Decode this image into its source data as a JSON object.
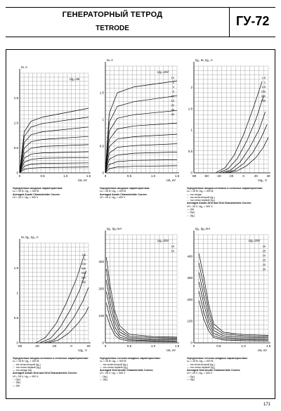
{
  "header": {
    "title_ru": "ГЕНЕРАТОРНЫЙ ТЕТРОД",
    "title_en": "TETRODE",
    "model": "ГУ-72"
  },
  "page_number": "171",
  "chart_data": [
    {
      "id": "c1",
      "type": "line",
      "ylabel": "Ia, A",
      "xlabel": "Ua, кV",
      "xticks": [
        "0",
        "0.5",
        "1.0",
        "1.5"
      ],
      "yticks": [
        "0",
        "0.5",
        "1.0",
        "1.5"
      ],
      "xlim": [
        0,
        1.5
      ],
      "ylim": [
        0,
        1.7
      ],
      "annotation": "Ug₁=1Б",
      "grid": true,
      "series": [
        {
          "x": [
            0,
            0.1,
            0.25,
            0.5,
            1.5
          ],
          "y": [
            0,
            0.7,
            0.88,
            0.95,
            1.1
          ]
        },
        {
          "x": [
            0,
            0.1,
            0.25,
            0.5,
            1.5
          ],
          "y": [
            0,
            0.62,
            0.78,
            0.84,
            0.95
          ]
        },
        {
          "x": [
            0,
            0.1,
            0.25,
            0.5,
            1.5
          ],
          "y": [
            0,
            0.52,
            0.65,
            0.7,
            0.78
          ]
        },
        {
          "x": [
            0,
            0.1,
            0.25,
            0.5,
            1.5
          ],
          "y": [
            0,
            0.42,
            0.53,
            0.57,
            0.62
          ]
        },
        {
          "x": [
            0,
            0.1,
            0.25,
            0.5,
            1.5
          ],
          "y": [
            0,
            0.33,
            0.42,
            0.45,
            0.48
          ]
        },
        {
          "x": [
            0,
            0.1,
            0.25,
            0.5,
            1.5
          ],
          "y": [
            0,
            0.25,
            0.32,
            0.34,
            0.36
          ]
        },
        {
          "x": [
            0,
            0.1,
            0.25,
            0.5,
            1.5
          ],
          "y": [
            0,
            0.18,
            0.23,
            0.25,
            0.26
          ]
        },
        {
          "x": [
            0,
            0.1,
            0.25,
            0.5,
            1.5
          ],
          "y": [
            0,
            0.11,
            0.15,
            0.16,
            0.17
          ]
        },
        {
          "x": [
            0,
            0.1,
            0.25,
            0.5,
            1.5
          ],
          "y": [
            0,
            0.06,
            0.08,
            0.09,
            0.1
          ]
        }
      ],
      "caption": {
        "ru_title": "Усредненные анодные характеристики:",
        "ru_cond": "Uₙ = 26 В; Ug₂ = 300 В",
        "en_title": "Averaged Anode Characteristic Curves:",
        "en_cond": "Uf = 26 V; Ug₂ = 300 V"
      }
    },
    {
      "id": "c2",
      "type": "line",
      "ylabel": "Ia, A",
      "xlabel": "Ua, кV",
      "xticks": [
        "0",
        "0.5",
        "1.0",
        "1.5"
      ],
      "yticks": [
        "0",
        "0.5",
        "1",
        "1.5"
      ],
      "xlim": [
        0,
        1.5
      ],
      "ylim": [
        0,
        1.8
      ],
      "annotation": "Ug₁=15V",
      "curve_labels": [
        "10",
        "5",
        "0",
        "-5",
        "-10",
        "-15",
        "-20",
        "-25",
        "-30"
      ],
      "grid": true,
      "series": [
        {
          "x": [
            0,
            0.08,
            0.25,
            0.6,
            1.5
          ],
          "y": [
            0,
            1.0,
            1.35,
            1.45,
            1.55
          ]
        },
        {
          "x": [
            0,
            0.08,
            0.25,
            0.6,
            1.5
          ],
          "y": [
            0,
            0.85,
            1.12,
            1.2,
            1.3
          ]
        },
        {
          "x": [
            0,
            0.08,
            0.25,
            0.6,
            1.5
          ],
          "y": [
            0,
            0.7,
            0.92,
            0.98,
            1.05
          ]
        },
        {
          "x": [
            0,
            0.08,
            0.25,
            0.6,
            1.5
          ],
          "y": [
            0,
            0.56,
            0.74,
            0.79,
            0.84
          ]
        },
        {
          "x": [
            0,
            0.08,
            0.25,
            0.6,
            1.5
          ],
          "y": [
            0,
            0.44,
            0.57,
            0.61,
            0.65
          ]
        },
        {
          "x": [
            0,
            0.08,
            0.25,
            0.6,
            1.5
          ],
          "y": [
            0,
            0.33,
            0.43,
            0.46,
            0.49
          ]
        },
        {
          "x": [
            0,
            0.08,
            0.25,
            0.6,
            1.5
          ],
          "y": [
            0,
            0.23,
            0.3,
            0.33,
            0.35
          ]
        },
        {
          "x": [
            0,
            0.08,
            0.25,
            0.6,
            1.5
          ],
          "y": [
            0,
            0.14,
            0.19,
            0.21,
            0.22
          ]
        },
        {
          "x": [
            0,
            0.08,
            0.25,
            0.6,
            1.5
          ],
          "y": [
            0,
            0.07,
            0.1,
            0.11,
            0.12
          ]
        }
      ],
      "caption": {
        "ru_title": "Усредненные анодные характеристики:",
        "ru_cond": "Uₙ = 26 В; Ug₂ = 400 В",
        "en_title": "Averaged Anode Characteristic Curves:",
        "en_cond": "Uf = 26 V; Ug₂ = 400 V"
      }
    },
    {
      "id": "c3",
      "type": "line",
      "ylabel": "Ig₁, Ia, Ig₂, A",
      "xlabel": "Ug₁, V",
      "xticks": [
        "-80",
        "-60",
        "-40",
        "-20",
        "0",
        "20",
        "40"
      ],
      "yticks": [
        "0",
        "0.5",
        "1",
        "1.5",
        "2"
      ],
      "xlim": [
        -80,
        40
      ],
      "ylim": [
        0,
        2.1
      ],
      "curve_labels": [
        "1.5",
        "1",
        "0.5",
        "250",
        "350",
        "400"
      ],
      "grid": true,
      "series": [
        {
          "x": [
            -45,
            -30,
            -15,
            0,
            15,
            30
          ],
          "y": [
            0,
            0.1,
            0.35,
            0.75,
            1.25,
            1.8
          ]
        },
        {
          "x": [
            -40,
            -25,
            -10,
            5,
            20,
            32
          ],
          "y": [
            0,
            0.08,
            0.28,
            0.62,
            1.05,
            1.5
          ]
        },
        {
          "x": [
            -35,
            -20,
            -5,
            10,
            25,
            35
          ],
          "y": [
            0,
            0.06,
            0.22,
            0.5,
            0.85,
            1.2
          ]
        },
        {
          "x": [
            -30,
            -15,
            0,
            15,
            28,
            38
          ],
          "y": [
            0,
            0.05,
            0.18,
            0.4,
            0.68,
            0.95
          ]
        },
        {
          "x": [
            -25,
            -10,
            5,
            20,
            32,
            40
          ],
          "y": [
            0,
            0.04,
            0.14,
            0.3,
            0.5,
            0.7
          ]
        }
      ],
      "caption": {
        "ru_title": "Усредненные анодно-сеточные и сеточные характеристики:",
        "ru_cond": "Uₙ = 26 В; Ug₂ = 300 В;",
        "ru_legend": [
          "ток анода",
          "ток сетки второй (Ig₂)",
          "ток сетки первой (Ig₁)"
        ],
        "en_title": "Averaged Anode-Grid and Grid Characteristic Curves:",
        "en_cond": "Uf = 26 V; Ug₂ = 300 V;",
        "en_legend": [
          "(Ia)",
          "(Ig₂)",
          "(Ig₁)"
        ]
      }
    },
    {
      "id": "c4",
      "type": "line",
      "ylabel": "Ia, Ig₁, Ig₂, A",
      "xlabel": "Ug₁, V",
      "xticks": [
        "-60",
        "-40",
        "-20",
        "0",
        "20"
      ],
      "yticks": [
        "0",
        "0.5",
        "1",
        "1.5"
      ],
      "xlim": [
        -60,
        25
      ],
      "ylim": [
        0,
        1.8
      ],
      "curve_labels": [
        "1.5",
        "1",
        "0.5",
        "400",
        "300",
        "200",
        "100"
      ],
      "grid": true,
      "series": [
        {
          "x": [
            -40,
            -28,
            -15,
            -3,
            10,
            20
          ],
          "y": [
            0,
            0.1,
            0.35,
            0.7,
            1.15,
            1.6
          ]
        },
        {
          "x": [
            -35,
            -22,
            -10,
            2,
            14,
            22
          ],
          "y": [
            0,
            0.08,
            0.28,
            0.58,
            0.95,
            1.3
          ]
        },
        {
          "x": [
            -30,
            -17,
            -5,
            7,
            18,
            25
          ],
          "y": [
            0,
            0.06,
            0.22,
            0.46,
            0.75,
            1.0
          ]
        },
        {
          "x": [
            -25,
            -12,
            0,
            12,
            22,
            25
          ],
          "y": [
            0,
            0.05,
            0.17,
            0.35,
            0.55,
            0.65
          ]
        }
      ],
      "caption": {
        "ru_title": "Усредненные анодно-сеточные и сеточные характеристики:",
        "ru_cond": "Uₙ = 26 В; Ug₂ = 400 В;",
        "ru_legend": [
          "ток сетки второй (Ig₂)",
          "ток сетки первой (Ig₁)",
          "ток анода (Ia)"
        ],
        "en_title": "Averaged Anode-Grid and Grid Characteristic Curves:",
        "en_cond": "Uf = 26 V; Ug₂ = 400 V;",
        "en_legend": [
          "(Ig₂)",
          "(Ig₁)",
          "(Ia)"
        ]
      }
    },
    {
      "id": "c5",
      "type": "line",
      "ylabel": "Ig₁, Ig₂,mA",
      "xlabel": "Ua, кV",
      "xticks": [
        "0",
        "0.5",
        "1.0",
        "1.5"
      ],
      "yticks": [
        "0",
        "100",
        "200",
        "300"
      ],
      "xlim": [
        0,
        1.5
      ],
      "ylim": [
        0,
        380
      ],
      "annotation": "Ug₁=25V",
      "curve_labels": [
        "15",
        "10"
      ],
      "grid": true,
      "series": [
        {
          "x": [
            0.02,
            0.1,
            0.2,
            0.3,
            0.5,
            1.0,
            1.5
          ],
          "y": [
            300,
            200,
            110,
            60,
            30,
            22,
            20
          ]
        },
        {
          "x": [
            0.02,
            0.1,
            0.2,
            0.3,
            0.5,
            1.0,
            1.5
          ],
          "y": [
            260,
            170,
            90,
            48,
            24,
            18,
            17
          ]
        },
        {
          "x": [
            0.02,
            0.1,
            0.2,
            0.3,
            0.5,
            1.0,
            1.5
          ],
          "y": [
            220,
            140,
            72,
            38,
            19,
            14,
            13
          ]
        },
        {
          "x": [
            0.02,
            0.1,
            0.2,
            0.3,
            0.5,
            1.0,
            1.5
          ],
          "y": [
            180,
            112,
            55,
            28,
            14,
            10,
            10
          ]
        },
        {
          "x": [
            0.02,
            0.1,
            0.2,
            0.3,
            0.5,
            1.0,
            1.5
          ],
          "y": [
            140,
            85,
            40,
            20,
            10,
            7,
            7
          ]
        },
        {
          "x": [
            0.02,
            0.1,
            0.2,
            0.3,
            0.5,
            1.0,
            1.5
          ],
          "y": [
            100,
            60,
            27,
            13,
            6,
            5,
            4
          ]
        }
      ],
      "caption": {
        "ru_title": "Усредненные сеточно-анодные характеристики:",
        "ru_cond": "Uₙ = 26 В; Ug₂ = 300 В;",
        "ru_legend": [
          "ток сетки второй (Ig₂)",
          "ток сетки первой (Ig₁)"
        ],
        "en_title": "Averaged Grid-Anode Characteristic Curves:",
        "en_cond": "Uf = 26 V; Ug₂ = 300 V",
        "en_legend": [
          "(Ig₂)",
          "(Ig₁)"
        ]
      }
    },
    {
      "id": "c6",
      "type": "line",
      "ylabel": "Ig₁, Ig₂,mA",
      "xlabel": "Ua, кV",
      "xticks": [
        "0",
        "0.5",
        "1.0",
        "1.5"
      ],
      "yticks": [
        "0",
        "100",
        "200",
        "300",
        "400"
      ],
      "xlim": [
        0,
        1.5
      ],
      "ylim": [
        0,
        460
      ],
      "annotation": "Ug₁=25V",
      "curve_labels": [
        "20",
        "15",
        "10",
        "15",
        "10",
        "20"
      ],
      "grid": true,
      "series": [
        {
          "x": [
            0.1,
            0.2,
            0.3,
            0.4,
            0.6,
            1.0,
            1.5
          ],
          "y": [
            380,
            280,
            160,
            80,
            45,
            35,
            32
          ]
        },
        {
          "x": [
            0.1,
            0.2,
            0.3,
            0.4,
            0.6,
            1.0,
            1.5
          ],
          "y": [
            340,
            240,
            135,
            65,
            38,
            30,
            28
          ]
        },
        {
          "x": [
            0.1,
            0.2,
            0.3,
            0.4,
            0.6,
            1.0,
            1.5
          ],
          "y": [
            300,
            200,
            110,
            52,
            30,
            24,
            22
          ]
        },
        {
          "x": [
            0.1,
            0.2,
            0.3,
            0.4,
            0.6,
            1.0,
            1.5
          ],
          "y": [
            260,
            165,
            88,
            40,
            23,
            18,
            17
          ]
        },
        {
          "x": [
            0.1,
            0.2,
            0.3,
            0.4,
            0.6,
            1.0,
            1.5
          ],
          "y": [
            220,
            130,
            68,
            30,
            17,
            13,
            12
          ]
        },
        {
          "x": [
            0.1,
            0.2,
            0.3,
            0.4,
            0.6,
            1.0,
            1.5
          ],
          "y": [
            180,
            100,
            50,
            22,
            12,
            9,
            8
          ]
        }
      ],
      "caption": {
        "ru_title": "Усредненные сеточно-анодные характеристики:",
        "ru_cond": "Uₙ = 26 В; Ug₂ = 400 В;",
        "ru_legend": [
          "ток сетки второй (Ig₂)",
          "ток сетки первой (Ig₁)"
        ],
        "en_title": "Averaged Grid-Anode Characteristic Curves:",
        "en_cond": "Uf = 26 V; Ug₂ = 400 V",
        "en_legend": [
          "(Ig₂)",
          "(Ig₁)"
        ]
      }
    }
  ]
}
